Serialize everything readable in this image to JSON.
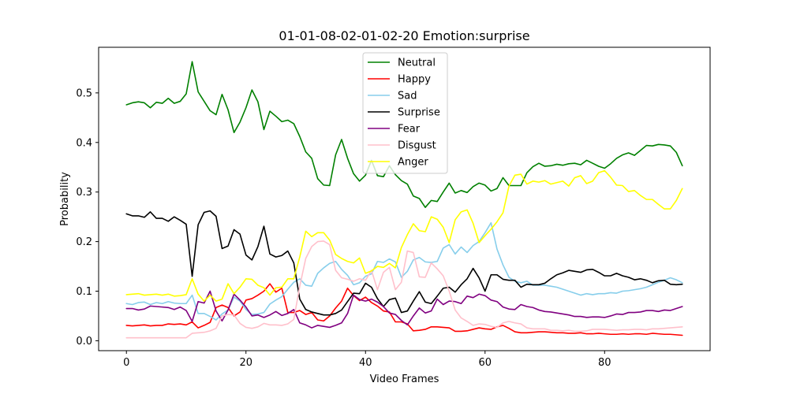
{
  "chart_data": {
    "type": "line",
    "title": "01-01-08-02-01-02-20 Emotion:surprise",
    "xlabel": "Video Frames",
    "ylabel": "Probability",
    "xlim": [
      -4.65,
      97.65
    ],
    "ylim": [
      -0.02,
      0.592
    ],
    "xticks": [
      0,
      20,
      40,
      60,
      80
    ],
    "yticks": [
      0.0,
      0.1,
      0.2,
      0.3,
      0.4,
      0.5
    ],
    "ytick_labels": [
      "0.0",
      "0.1",
      "0.2",
      "0.3",
      "0.4",
      "0.5"
    ],
    "grid": false,
    "legend_position": "upper center",
    "x": [
      0,
      1,
      2,
      3,
      4,
      5,
      6,
      7,
      8,
      9,
      10,
      11,
      12,
      13,
      14,
      15,
      16,
      17,
      18,
      19,
      20,
      21,
      22,
      23,
      24,
      25,
      26,
      27,
      28,
      29,
      30,
      31,
      32,
      33,
      34,
      35,
      36,
      37,
      38,
      39,
      40,
      41,
      42,
      43,
      44,
      45,
      46,
      47,
      48,
      49,
      50,
      51,
      52,
      53,
      54,
      55,
      56,
      57,
      58,
      59,
      60,
      61,
      62,
      63,
      64,
      65,
      66,
      67,
      68,
      69,
      70,
      71,
      72,
      73,
      74,
      75,
      76,
      77,
      78,
      79,
      80,
      81,
      82,
      83,
      84,
      85,
      86,
      87,
      88,
      89,
      90,
      91,
      92,
      93
    ],
    "series": [
      {
        "name": "Neutral",
        "color": "#008000",
        "values": [
          0.476,
          0.48,
          0.482,
          0.48,
          0.47,
          0.481,
          0.479,
          0.489,
          0.479,
          0.483,
          0.498,
          0.563,
          0.502,
          0.483,
          0.464,
          0.456,
          0.497,
          0.466,
          0.42,
          0.441,
          0.47,
          0.506,
          0.482,
          0.426,
          0.463,
          0.453,
          0.442,
          0.445,
          0.438,
          0.412,
          0.381,
          0.368,
          0.327,
          0.314,
          0.313,
          0.375,
          0.406,
          0.368,
          0.337,
          0.322,
          0.334,
          0.364,
          0.333,
          0.331,
          0.353,
          0.335,
          0.323,
          0.316,
          0.292,
          0.287,
          0.269,
          0.283,
          0.281,
          0.3,
          0.318,
          0.298,
          0.303,
          0.299,
          0.311,
          0.318,
          0.314,
          0.302,
          0.307,
          0.329,
          0.313,
          0.313,
          0.313,
          0.339,
          0.351,
          0.358,
          0.352,
          0.353,
          0.356,
          0.354,
          0.357,
          0.358,
          0.355,
          0.364,
          0.358,
          0.352,
          0.348,
          0.357,
          0.368,
          0.375,
          0.379,
          0.374,
          0.384,
          0.394,
          0.393,
          0.396,
          0.395,
          0.393,
          0.38,
          0.353
        ]
      },
      {
        "name": "Happy",
        "color": "#ff0000",
        "values": [
          0.031,
          0.03,
          0.031,
          0.032,
          0.03,
          0.031,
          0.031,
          0.034,
          0.033,
          0.034,
          0.032,
          0.038,
          0.026,
          0.031,
          0.037,
          0.067,
          0.072,
          0.067,
          0.05,
          0.058,
          0.082,
          0.085,
          0.092,
          0.1,
          0.115,
          0.098,
          0.106,
          0.057,
          0.057,
          0.061,
          0.053,
          0.057,
          0.042,
          0.04,
          0.05,
          0.066,
          0.08,
          0.106,
          0.091,
          0.081,
          0.088,
          0.077,
          0.07,
          0.06,
          0.058,
          0.038,
          0.038,
          0.034,
          0.02,
          0.021,
          0.023,
          0.028,
          0.028,
          0.027,
          0.026,
          0.019,
          0.019,
          0.02,
          0.023,
          0.026,
          0.024,
          0.023,
          0.028,
          0.031,
          0.025,
          0.018,
          0.016,
          0.016,
          0.017,
          0.018,
          0.018,
          0.017,
          0.016,
          0.016,
          0.015,
          0.015,
          0.016,
          0.014,
          0.014,
          0.015,
          0.014,
          0.013,
          0.013,
          0.014,
          0.013,
          0.014,
          0.014,
          0.013,
          0.015,
          0.014,
          0.013,
          0.013,
          0.012,
          0.011
        ]
      },
      {
        "name": "Sad",
        "color": "#87ceeb",
        "values": [
          0.075,
          0.073,
          0.077,
          0.078,
          0.073,
          0.077,
          0.075,
          0.079,
          0.076,
          0.075,
          0.075,
          0.092,
          0.055,
          0.055,
          0.049,
          0.042,
          0.054,
          0.062,
          0.088,
          0.08,
          0.063,
          0.053,
          0.054,
          0.057,
          0.074,
          0.082,
          0.089,
          0.104,
          0.118,
          0.125,
          0.112,
          0.11,
          0.136,
          0.147,
          0.156,
          0.16,
          0.144,
          0.132,
          0.113,
          0.117,
          0.13,
          0.135,
          0.16,
          0.158,
          0.165,
          0.159,
          0.128,
          0.14,
          0.163,
          0.168,
          0.159,
          0.158,
          0.16,
          0.187,
          0.194,
          0.175,
          0.189,
          0.178,
          0.192,
          0.2,
          0.218,
          0.238,
          0.185,
          0.153,
          0.128,
          0.12,
          0.117,
          0.12,
          0.112,
          0.112,
          0.112,
          0.11,
          0.108,
          0.104,
          0.1,
          0.096,
          0.092,
          0.095,
          0.093,
          0.095,
          0.095,
          0.097,
          0.096,
          0.1,
          0.101,
          0.103,
          0.105,
          0.108,
          0.113,
          0.118,
          0.122,
          0.127,
          0.123,
          0.117
        ]
      },
      {
        "name": "Surprise",
        "color": "#000000",
        "values": [
          0.256,
          0.252,
          0.252,
          0.249,
          0.26,
          0.247,
          0.247,
          0.241,
          0.25,
          0.243,
          0.235,
          0.13,
          0.234,
          0.259,
          0.262,
          0.251,
          0.186,
          0.191,
          0.224,
          0.215,
          0.173,
          0.163,
          0.19,
          0.231,
          0.175,
          0.169,
          0.172,
          0.181,
          0.157,
          0.084,
          0.063,
          0.058,
          0.055,
          0.052,
          0.052,
          0.055,
          0.062,
          0.079,
          0.096,
          0.095,
          0.116,
          0.108,
          0.085,
          0.069,
          0.083,
          0.086,
          0.057,
          0.06,
          0.08,
          0.099,
          0.078,
          0.075,
          0.09,
          0.106,
          0.108,
          0.098,
          0.113,
          0.125,
          0.146,
          0.127,
          0.1,
          0.133,
          0.133,
          0.124,
          0.122,
          0.122,
          0.108,
          0.114,
          0.113,
          0.113,
          0.116,
          0.125,
          0.133,
          0.137,
          0.142,
          0.14,
          0.138,
          0.143,
          0.144,
          0.138,
          0.131,
          0.131,
          0.136,
          0.131,
          0.128,
          0.123,
          0.125,
          0.122,
          0.117,
          0.121,
          0.122,
          0.114,
          0.113,
          0.114
        ]
      },
      {
        "name": "Fear",
        "color": "#800080",
        "values": [
          0.065,
          0.065,
          0.062,
          0.064,
          0.07,
          0.069,
          0.068,
          0.067,
          0.063,
          0.068,
          0.061,
          0.039,
          0.079,
          0.076,
          0.1,
          0.06,
          0.04,
          0.062,
          0.094,
          0.082,
          0.068,
          0.05,
          0.052,
          0.047,
          0.052,
          0.059,
          0.051,
          0.055,
          0.063,
          0.036,
          0.032,
          0.026,
          0.031,
          0.029,
          0.027,
          0.031,
          0.036,
          0.055,
          0.092,
          0.083,
          0.08,
          0.084,
          0.078,
          0.069,
          0.056,
          0.053,
          0.041,
          0.032,
          0.05,
          0.066,
          0.056,
          0.06,
          0.084,
          0.073,
          0.08,
          0.079,
          0.075,
          0.09,
          0.087,
          0.094,
          0.091,
          0.082,
          0.079,
          0.068,
          0.064,
          0.063,
          0.073,
          0.069,
          0.067,
          0.062,
          0.059,
          0.058,
          0.056,
          0.054,
          0.052,
          0.049,
          0.049,
          0.047,
          0.048,
          0.048,
          0.047,
          0.05,
          0.054,
          0.053,
          0.057,
          0.057,
          0.058,
          0.061,
          0.061,
          0.059,
          0.062,
          0.061,
          0.065,
          0.069
        ]
      },
      {
        "name": "Disgust",
        "color": "#ffc0cb",
        "values": [
          0.006,
          0.006,
          0.006,
          0.006,
          0.006,
          0.006,
          0.006,
          0.006,
          0.006,
          0.006,
          0.006,
          0.015,
          0.016,
          0.017,
          0.02,
          0.025,
          0.05,
          0.053,
          0.052,
          0.035,
          0.027,
          0.025,
          0.028,
          0.035,
          0.032,
          0.032,
          0.031,
          0.034,
          0.043,
          0.11,
          0.166,
          0.19,
          0.2,
          0.201,
          0.194,
          0.142,
          0.127,
          0.124,
          0.12,
          0.125,
          0.122,
          0.142,
          0.103,
          0.138,
          0.148,
          0.103,
          0.118,
          0.181,
          0.178,
          0.129,
          0.128,
          0.157,
          0.145,
          0.131,
          0.1,
          0.062,
          0.046,
          0.039,
          0.031,
          0.034,
          0.033,
          0.029,
          0.027,
          0.036,
          0.039,
          0.036,
          0.034,
          0.026,
          0.024,
          0.024,
          0.024,
          0.021,
          0.021,
          0.02,
          0.021,
          0.019,
          0.019,
          0.02,
          0.023,
          0.023,
          0.023,
          0.022,
          0.021,
          0.022,
          0.022,
          0.023,
          0.023,
          0.022,
          0.024,
          0.024,
          0.025,
          0.026,
          0.027,
          0.028
        ]
      },
      {
        "name": "Anger",
        "color": "#ffff00",
        "values": [
          0.093,
          0.094,
          0.095,
          0.092,
          0.093,
          0.094,
          0.092,
          0.094,
          0.09,
          0.091,
          0.093,
          0.125,
          0.094,
          0.08,
          0.092,
          0.08,
          0.084,
          0.115,
          0.095,
          0.108,
          0.125,
          0.124,
          0.112,
          0.107,
          0.092,
          0.107,
          0.108,
          0.125,
          0.125,
          0.169,
          0.221,
          0.21,
          0.218,
          0.218,
          0.203,
          0.174,
          0.166,
          0.16,
          0.157,
          0.167,
          0.136,
          0.141,
          0.15,
          0.148,
          0.156,
          0.147,
          0.188,
          0.214,
          0.236,
          0.222,
          0.22,
          0.25,
          0.245,
          0.229,
          0.198,
          0.244,
          0.26,
          0.264,
          0.237,
          0.198,
          0.212,
          0.225,
          0.24,
          0.258,
          0.312,
          0.334,
          0.336,
          0.316,
          0.322,
          0.32,
          0.323,
          0.316,
          0.319,
          0.322,
          0.312,
          0.329,
          0.333,
          0.317,
          0.322,
          0.339,
          0.343,
          0.33,
          0.314,
          0.313,
          0.301,
          0.303,
          0.293,
          0.285,
          0.285,
          0.275,
          0.266,
          0.266,
          0.283,
          0.307
        ]
      }
    ]
  }
}
